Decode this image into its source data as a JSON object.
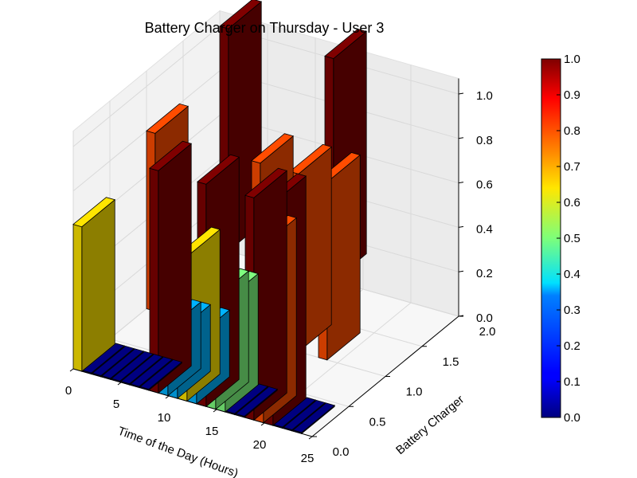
{
  "chart_data": {
    "type": "bar3d",
    "title": "Battery Charger on Thursday - User 3",
    "xlabel": "Time of the Day (Hours)",
    "ylabel": "Battery Charger",
    "xlim": [
      0,
      25
    ],
    "ylim": [
      0.0,
      2.0
    ],
    "zlim": [
      0.0,
      1.0
    ],
    "xticks": [
      "0",
      "5",
      "10",
      "15",
      "20",
      "25"
    ],
    "yticks": [
      "0.0",
      "0.5",
      "1.0",
      "1.5",
      "2.0"
    ],
    "zticks": [
      "0.0",
      "0.2",
      "0.4",
      "0.6",
      "0.8",
      "1.0"
    ],
    "colorbar": {
      "colormap": "jet",
      "range": [
        0.0,
        1.0
      ],
      "ticks": [
        "0.0",
        "0.1",
        "0.2",
        "0.3",
        "0.4",
        "0.5",
        "0.6",
        "0.7",
        "0.8",
        "0.9",
        "1.0"
      ]
    },
    "grid": true,
    "bars": [
      {
        "x": 0,
        "y": 0.0,
        "value": 0.65
      },
      {
        "x": 0,
        "y": 1.0,
        "value": 0.8
      },
      {
        "x": 0,
        "y": 2.0,
        "value": 1.0
      },
      {
        "x": 1,
        "y": 0.0,
        "value": 0.0
      },
      {
        "x": 2,
        "y": 0.0,
        "value": 0.0
      },
      {
        "x": 3,
        "y": 0.0,
        "value": 0.0
      },
      {
        "x": 4,
        "y": 0.0,
        "value": 0.0
      },
      {
        "x": 5,
        "y": 0.0,
        "value": 0.0
      },
      {
        "x": 6,
        "y": 0.0,
        "value": 0.0
      },
      {
        "x": 7,
        "y": 0.0,
        "value": 0.0
      },
      {
        "x": 8,
        "y": 0.0,
        "value": 1.0
      },
      {
        "x": 9,
        "y": 0.0,
        "value": 0.3
      },
      {
        "x": 10,
        "y": 0.0,
        "value": 0.3
      },
      {
        "x": 11,
        "y": 0.0,
        "value": 0.65
      },
      {
        "x": 11,
        "y": 1.0,
        "value": 0.8
      },
      {
        "x": 11,
        "y": 2.0,
        "value": 1.0
      },
      {
        "x": 12,
        "y": 0.0,
        "value": 0.3
      },
      {
        "x": 13,
        "y": 0.0,
        "value": 1.0
      },
      {
        "x": 14,
        "y": 0.0,
        "value": 0.5
      },
      {
        "x": 15,
        "y": 0.0,
        "value": 0.5
      },
      {
        "x": 15,
        "y": 1.0,
        "value": 0.8
      },
      {
        "x": 16,
        "y": 0.0,
        "value": 0.0
      },
      {
        "x": 17,
        "y": 0.0,
        "value": 0.0
      },
      {
        "x": 18,
        "y": 0.0,
        "value": 1.0
      },
      {
        "x": 18,
        "y": 1.0,
        "value": 0.8
      },
      {
        "x": 19,
        "y": 0.0,
        "value": 0.8
      },
      {
        "x": 20,
        "y": 0.0,
        "value": 1.0
      },
      {
        "x": 21,
        "y": 0.0,
        "value": 0.0
      },
      {
        "x": 22,
        "y": 0.0,
        "value": 0.0
      },
      {
        "x": 23,
        "y": 0.0,
        "value": 0.0
      }
    ]
  }
}
